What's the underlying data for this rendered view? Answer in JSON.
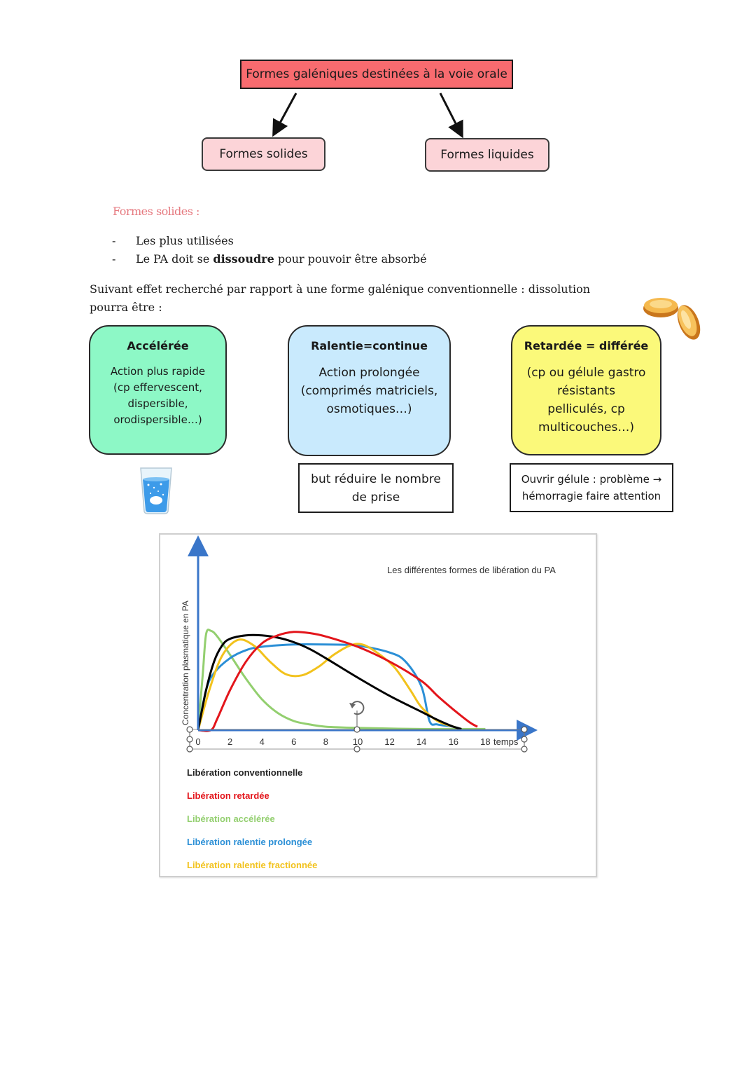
{
  "diagram": {
    "top": "Formes galéniques destinées à la voie orale",
    "left": "Formes solides",
    "right": "Formes liquides"
  },
  "section_title": "Formes solides :",
  "bullets": {
    "b1": "Les plus utilisées",
    "b2_before": "Le PA doit se ",
    "b2_bold": "dissoudre",
    "b2_after": " pour pouvoir être absorbé"
  },
  "paragraph": "Suivant effet recherché par rapport à une forme galénique conventionnelle : dissolution pourra être :",
  "cards": {
    "accelerated": {
      "title": "Accélérée",
      "text": "Action plus rapide (cp effervescent, dispersible, orodispersible…)"
    },
    "slowed": {
      "title": "Ralentie=continue",
      "text": "Action prolongée (comprimés matriciels, osmotiques…)"
    },
    "delayed": {
      "title": "Retardée = différée",
      "text": "(cp ou gélule gastro résistants pelliculés, cp multicouches…)"
    }
  },
  "notes": {
    "slowed": "but réduire le nombre de prise",
    "delayed": "Ouvrir gélule : problème → hémorragie faire attention"
  },
  "icons": {
    "glass": "effervescent-glass-icon",
    "capsules": "capsules-icon",
    "rotate": "rotate-handle-icon"
  },
  "chart_data": {
    "type": "line",
    "title": "Les différentes formes de libération du PA",
    "xlabel": "temps",
    "ylabel": "Concentration plasmatique en PA",
    "x_ticks": [
      "0",
      "2",
      "4",
      "6",
      "8",
      "10",
      "12",
      "14",
      "16",
      "18"
    ],
    "xlim": [
      0,
      20
    ],
    "ylim": [
      0,
      1
    ],
    "grid": false,
    "series": [
      {
        "name": "Libération conventionnelle",
        "color": "#000000",
        "points": [
          [
            0,
            0
          ],
          [
            0.5,
            0.35
          ],
          [
            1,
            0.6
          ],
          [
            1.5,
            0.74
          ],
          [
            2,
            0.8
          ],
          [
            3,
            0.83
          ],
          [
            4,
            0.83
          ],
          [
            5,
            0.81
          ],
          [
            6,
            0.77
          ],
          [
            7,
            0.71
          ],
          [
            8,
            0.63
          ],
          [
            10,
            0.46
          ],
          [
            12,
            0.3
          ],
          [
            14,
            0.16
          ],
          [
            15,
            0.09
          ],
          [
            16,
            0.03
          ],
          [
            16.5,
            0.01
          ]
        ]
      },
      {
        "name": "Libération retardée",
        "color": "#e3151b",
        "points": [
          [
            0,
            0
          ],
          [
            0.8,
            0
          ],
          [
            1.2,
            0.1
          ],
          [
            2,
            0.35
          ],
          [
            3,
            0.6
          ],
          [
            4,
            0.76
          ],
          [
            5,
            0.83
          ],
          [
            6,
            0.86
          ],
          [
            7,
            0.85
          ],
          [
            8,
            0.82
          ],
          [
            10,
            0.73
          ],
          [
            12,
            0.6
          ],
          [
            14,
            0.43
          ],
          [
            15,
            0.3
          ],
          [
            16,
            0.18
          ],
          [
            17,
            0.07
          ],
          [
            17.5,
            0.03
          ]
        ]
      },
      {
        "name": "Libération accélérée",
        "color": "#93cf6f",
        "points": [
          [
            0,
            0
          ],
          [
            0.3,
            0.5
          ],
          [
            0.5,
            0.84
          ],
          [
            0.8,
            0.87
          ],
          [
            1.2,
            0.82
          ],
          [
            2,
            0.66
          ],
          [
            3,
            0.45
          ],
          [
            4,
            0.27
          ],
          [
            5,
            0.15
          ],
          [
            6,
            0.08
          ],
          [
            7,
            0.05
          ],
          [
            8,
            0.03
          ],
          [
            10,
            0.02
          ],
          [
            14,
            0.01
          ],
          [
            18,
            0.01
          ]
        ]
      },
      {
        "name": "Libération ralentie prolongée",
        "color": "#2b8fd6",
        "points": [
          [
            0,
            0
          ],
          [
            0.5,
            0.35
          ],
          [
            1,
            0.5
          ],
          [
            2,
            0.63
          ],
          [
            3,
            0.7
          ],
          [
            4,
            0.73
          ],
          [
            6,
            0.75
          ],
          [
            8,
            0.75
          ],
          [
            10,
            0.74
          ],
          [
            12,
            0.68
          ],
          [
            13,
            0.6
          ],
          [
            14,
            0.38
          ],
          [
            14.5,
            0.08
          ],
          [
            15,
            0.05
          ],
          [
            16,
            0.03
          ],
          [
            16.5,
            0.01
          ]
        ]
      },
      {
        "name": "Libération ralentie fractionnée",
        "color": "#f2c21c",
        "points": [
          [
            0,
            0
          ],
          [
            0.7,
            0.35
          ],
          [
            1.5,
            0.65
          ],
          [
            2.5,
            0.79
          ],
          [
            3.5,
            0.74
          ],
          [
            4.5,
            0.6
          ],
          [
            5.5,
            0.49
          ],
          [
            6.5,
            0.48
          ],
          [
            7.5,
            0.55
          ],
          [
            8.5,
            0.66
          ],
          [
            9.5,
            0.74
          ],
          [
            10.3,
            0.75
          ],
          [
            11.2,
            0.68
          ],
          [
            12.3,
            0.55
          ],
          [
            13.3,
            0.35
          ],
          [
            14,
            0.2
          ],
          [
            15,
            0.08
          ],
          [
            16,
            0.03
          ],
          [
            16.5,
            0.01
          ]
        ]
      }
    ]
  }
}
